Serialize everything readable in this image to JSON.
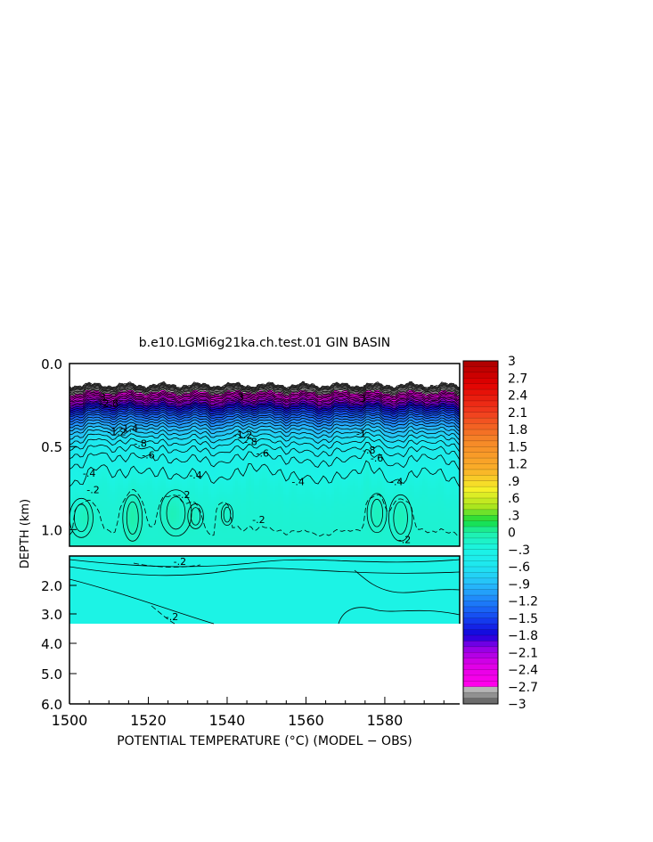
{
  "chart_data": {
    "type": "heatmap",
    "title": "b.e10.LGMi6g21ka.ch.test.01 GIN BASIN",
    "xlabel": "POTENTIAL TEMPERATURE (°C) (MODEL − OBS)",
    "ylabel": "DEPTH (km)",
    "xlim": [
      1500,
      1599
    ],
    "x_ticks": [
      "1500",
      "1520",
      "1540",
      "1560",
      "1580"
    ],
    "y_ticks_upper": [
      "0.0",
      "0.5",
      "1.0"
    ],
    "y_ticks_lower": [
      "2.0",
      "3.0",
      "4.0",
      "5.0",
      "6.0"
    ],
    "ylim_upper_km": [
      0.0,
      1.1
    ],
    "ylim_lower_km": [
      1.1,
      6.0
    ],
    "ocean_floor_km": 3.3,
    "colorbar": {
      "min": -3,
      "max": 3,
      "interval": 0.1,
      "labels": [
        "3",
        "2.7",
        "2.4",
        "2.1",
        "1.8",
        "1.5",
        "1.2",
        ".9",
        ".6",
        ".3",
        "0",
        "−.3",
        "−.6",
        "−.9",
        "−1.2",
        "−1.5",
        "−1.8",
        "−2.1",
        "−2.4",
        "−2.7",
        "−3"
      ],
      "label_values": [
        3,
        2.7,
        2.4,
        2.1,
        1.8,
        1.5,
        1.2,
        0.9,
        0.6,
        0.3,
        0,
        -0.3,
        -0.6,
        -0.9,
        -1.2,
        -1.5,
        -1.8,
        -2.1,
        -2.4,
        -2.7,
        -3
      ]
    },
    "contour_labels": [
      {
        "text": "-3",
        "x": 1508,
        "d": 0.2
      },
      {
        "text": "-2.8",
        "x": 1510,
        "d": 0.24
      },
      {
        "text": "-1.4",
        "x": 1515,
        "d": 0.39
      },
      {
        "text": "-1.2",
        "x": 1512,
        "d": 0.41
      },
      {
        "text": "-.8",
        "x": 1518,
        "d": 0.48
      },
      {
        "text": "-.6",
        "x": 1520,
        "d": 0.55
      },
      {
        "text": "-.4",
        "x": 1505,
        "d": 0.66
      },
      {
        "text": "-.2",
        "x": 1506,
        "d": 0.76
      },
      {
        "text": "-.4",
        "x": 1532,
        "d": 0.67
      },
      {
        "text": "-.2",
        "x": 1529,
        "d": 0.79
      },
      {
        "text": "-3",
        "x": 1543,
        "d": 0.2
      },
      {
        "text": "-1.2",
        "x": 1544,
        "d": 0.43
      },
      {
        "text": "-.8",
        "x": 1546,
        "d": 0.47
      },
      {
        "text": "-.6",
        "x": 1549,
        "d": 0.54
      },
      {
        "text": "-.4",
        "x": 1558,
        "d": 0.71
      },
      {
        "text": "-.2",
        "x": 1548,
        "d": 0.94
      },
      {
        "text": "-3",
        "x": 1574,
        "d": 0.21
      },
      {
        "text": "-1",
        "x": 1574,
        "d": 0.42
      },
      {
        "text": "-.8",
        "x": 1576,
        "d": 0.52
      },
      {
        "text": "-.6",
        "x": 1578,
        "d": 0.57
      },
      {
        "text": "-.4",
        "x": 1583,
        "d": 0.71
      },
      {
        "text": "-.2",
        "x": 1585,
        "d": 1.06
      },
      {
        "text": "-.2",
        "x": 1528,
        "d": 1.28
      },
      {
        "text": "-.2",
        "x": 1526,
        "d": 2.9
      }
    ]
  }
}
